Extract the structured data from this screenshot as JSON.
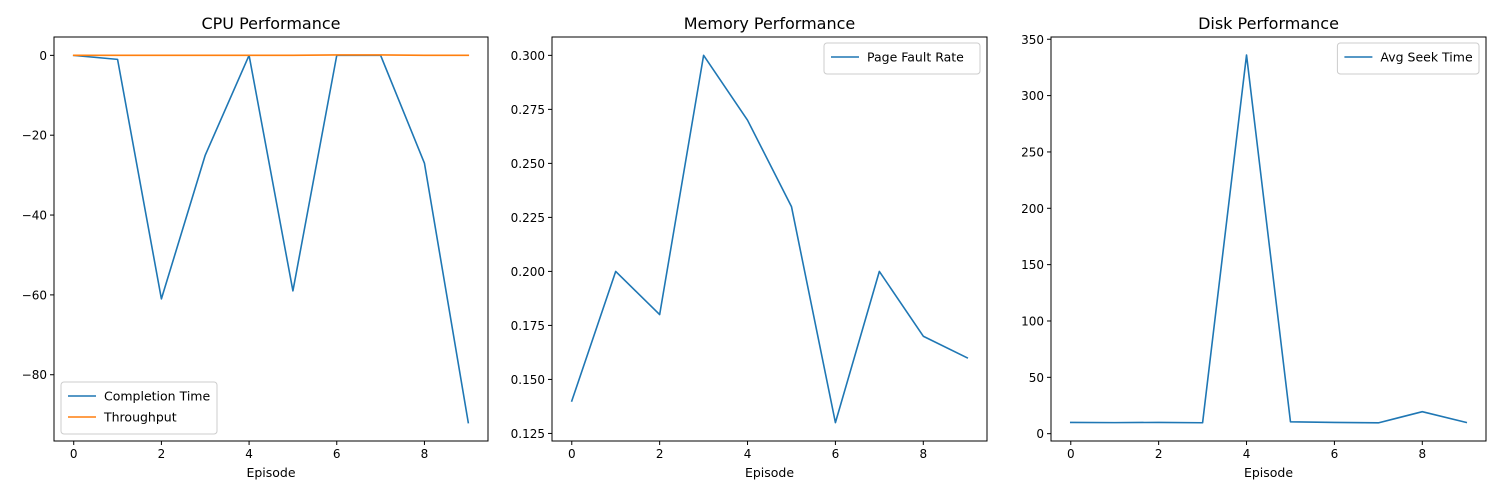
{
  "chart_data": [
    {
      "type": "line",
      "title": "CPU Performance",
      "xlabel": "Episode",
      "ylabel": "",
      "x": [
        0,
        1,
        2,
        3,
        4,
        5,
        6,
        7,
        8,
        9
      ],
      "xlim": [
        -0.45,
        9.45
      ],
      "ylim": [
        -96.6,
        4.6
      ],
      "xticks": [
        0,
        2,
        4,
        6,
        8
      ],
      "yticks": [
        0,
        -20,
        -40,
        -60,
        -80
      ],
      "legend": "lower-left",
      "series": [
        {
          "name": "Completion Time",
          "color": "#1f77b4",
          "values": [
            0,
            -1,
            -61,
            -25,
            0,
            -59,
            0,
            0,
            -27,
            -92
          ]
        },
        {
          "name": "Throughput",
          "color": "#ff7f0e",
          "values": [
            0,
            0,
            0,
            0,
            0,
            0,
            0.1,
            0.1,
            0,
            0
          ]
        }
      ]
    },
    {
      "type": "line",
      "title": "Memory Performance",
      "xlabel": "Episode",
      "ylabel": "",
      "x": [
        0,
        1,
        2,
        3,
        4,
        5,
        6,
        7,
        8,
        9
      ],
      "xlim": [
        -0.45,
        9.45
      ],
      "ylim": [
        0.1215,
        0.3085
      ],
      "xticks": [
        0,
        2,
        4,
        6,
        8
      ],
      "yticks": [
        0.125,
        0.15,
        0.175,
        0.2,
        0.225,
        0.25,
        0.275,
        0.3
      ],
      "ytick_labels": [
        "0.125",
        "0.150",
        "0.175",
        "0.200",
        "0.225",
        "0.250",
        "0.275",
        "0.300"
      ],
      "legend": "upper-right",
      "series": [
        {
          "name": "Page Fault Rate",
          "color": "#1f77b4",
          "values": [
            0.14,
            0.2,
            0.18,
            0.3,
            0.27,
            0.23,
            0.13,
            0.2,
            0.17,
            0.16
          ]
        }
      ]
    },
    {
      "type": "line",
      "title": "Disk Performance",
      "xlabel": "Episode",
      "ylabel": "",
      "x": [
        0,
        1,
        2,
        3,
        4,
        5,
        6,
        7,
        8,
        9
      ],
      "xlim": [
        -0.45,
        9.45
      ],
      "ylim": [
        -6.5,
        352
      ],
      "xticks": [
        0,
        2,
        4,
        6,
        8
      ],
      "yticks": [
        0,
        50,
        100,
        150,
        200,
        250,
        300,
        350
      ],
      "legend": "upper-right",
      "series": [
        {
          "name": "Avg Seek Time",
          "color": "#1f77b4",
          "values": [
            10,
            9.8,
            10,
            9.7,
            336,
            10.5,
            10,
            9.6,
            19.5,
            10
          ]
        }
      ]
    }
  ]
}
